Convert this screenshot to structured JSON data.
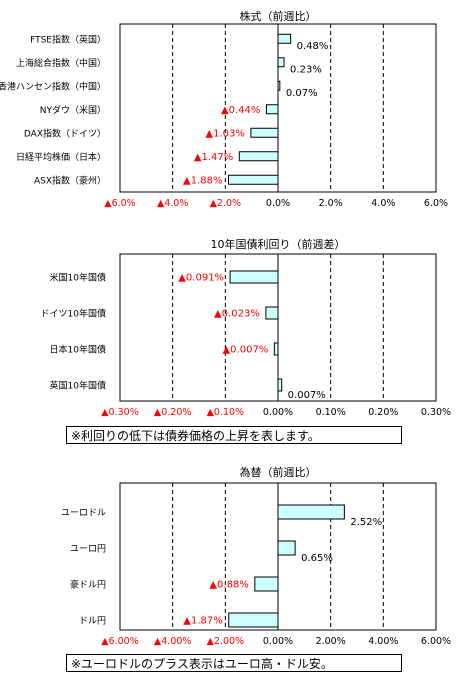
{
  "chart_data": [
    {
      "type": "bar",
      "orientation": "horizontal",
      "title": "株式（前週比）",
      "categories": [
        "FTSE指数（英国）",
        "上海総合指数（中国）",
        "香港ハンセン指数（中国）",
        "NYダウ（米国）",
        "DAX指数（ドイツ）",
        "日経平均株価（日本）",
        "ASX指数（豪州）"
      ],
      "values": [
        0.48,
        0.23,
        0.07,
        -0.44,
        -1.03,
        -1.47,
        -1.88
      ],
      "data_labels": [
        "0.48%",
        "0.23%",
        "0.07%",
        "▲0.44%",
        "▲1.03%",
        "▲1.47%",
        "▲1.88%"
      ],
      "xlim": [
        -6,
        6
      ],
      "xticks": [
        -6,
        -4,
        -2,
        0,
        2,
        4,
        6
      ],
      "xtick_labels": [
        "▲6.0%",
        "▲4.0%",
        "▲2.0%",
        "0.0%",
        "2.0%",
        "4.0%",
        "6.0%"
      ],
      "grid": true
    },
    {
      "type": "bar",
      "orientation": "horizontal",
      "title": "10年国債利回り（前週差）",
      "categories": [
        "米国10年国債",
        "ドイツ10年国債",
        "日本10年国債",
        "英国10年国債"
      ],
      "values": [
        -0.091,
        -0.023,
        -0.007,
        0.007
      ],
      "data_labels": [
        "▲0.091%",
        "▲0.023%",
        "▲0.007%",
        "0.007%"
      ],
      "xlim": [
        -0.3,
        0.3
      ],
      "xticks": [
        -0.3,
        -0.2,
        -0.1,
        0,
        0.1,
        0.2,
        0.3
      ],
      "xtick_labels": [
        "▲0.30%",
        "▲0.20%",
        "▲0.10%",
        "0.00%",
        "0.10%",
        "0.20%",
        "0.30%"
      ],
      "grid": true,
      "note": "※利回りの低下は債券価格の上昇を表します。"
    },
    {
      "type": "bar",
      "orientation": "horizontal",
      "title": "為替（前週比）",
      "categories": [
        "ユーロドル",
        "ユーロ円",
        "豪ドル円",
        "ドル円"
      ],
      "values": [
        2.52,
        0.65,
        -0.88,
        -1.87
      ],
      "data_labels": [
        "2.52%",
        "0.65%",
        "▲0.88%",
        "▲1.87%"
      ],
      "xlim": [
        -6,
        6
      ],
      "xticks": [
        -6,
        -4,
        -2,
        0,
        2,
        4,
        6
      ],
      "xtick_labels": [
        "▲6.00%",
        "▲4.00%",
        "▲2.00%",
        "0.00%",
        "2.00%",
        "4.00%",
        "6.00%"
      ],
      "grid": true,
      "note": "※ユーロドルのプラス表示はユーロ高・ドル安。"
    }
  ],
  "colors": {
    "bar_fill": "#ccffff",
    "bar_stroke": "#000000",
    "negative_text": "#ff0000",
    "text": "#000000",
    "grid": "#000000"
  }
}
